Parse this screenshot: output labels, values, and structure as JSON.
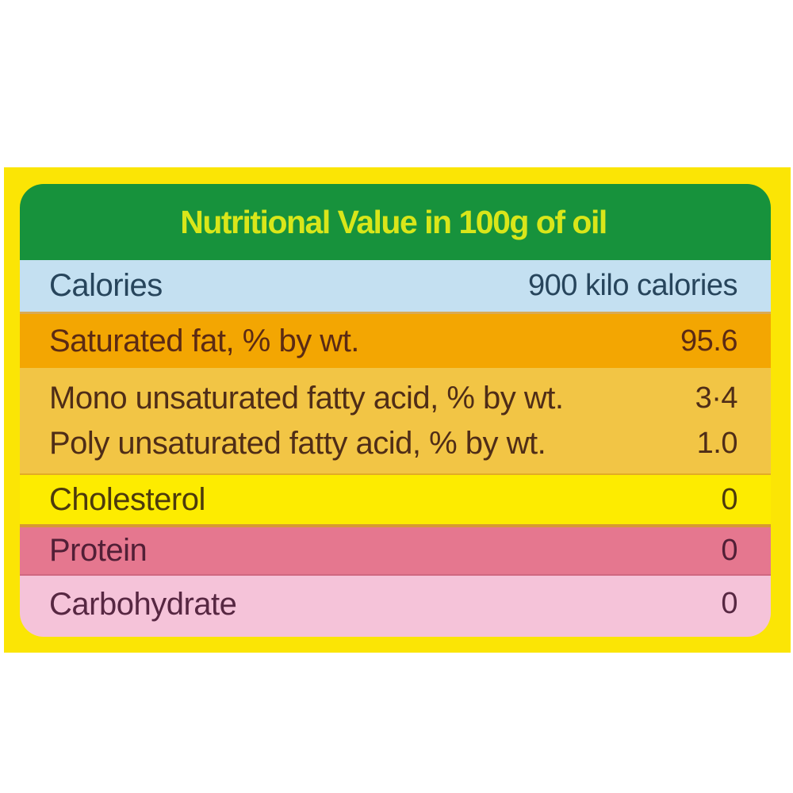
{
  "label": {
    "title": "Nutritional Value in 100g of oil",
    "colors": {
      "page_background": "#FFFFFF",
      "outer_background": "#FBE505",
      "header_background": "#17923C",
      "header_text": "#D9E61A"
    },
    "rows": [
      {
        "name": "calories",
        "bg": "#C4E0F1",
        "text_color": "#27455C",
        "lines": [
          {
            "label": "Calories",
            "value": "900 kilo calories"
          }
        ]
      },
      {
        "name": "saturated-fat",
        "bg": "#F3A602",
        "text_color": "#5B2A14",
        "lines": [
          {
            "label": "Saturated fat, % by wt.",
            "value": "95.6"
          }
        ]
      },
      {
        "name": "unsaturated-fats",
        "bg": "#F2C545",
        "text_color": "#4F2D17",
        "lines": [
          {
            "label": "Mono unsaturated fatty acid, % by wt.",
            "value": "3·4"
          },
          {
            "label": "Poly unsaturated fatty acid, % by wt.",
            "value": "1.0"
          }
        ]
      },
      {
        "name": "cholesterol",
        "bg": "#FDEC00",
        "text_color": "#4C3A0D",
        "lines": [
          {
            "label": "Cholesterol",
            "value": "0"
          }
        ]
      },
      {
        "name": "protein",
        "bg": "#E5778F",
        "text_color": "#511F36",
        "lines": [
          {
            "label": "Protein",
            "value": "0"
          }
        ]
      },
      {
        "name": "carbohydrate",
        "bg": "#F5C3D9",
        "text_color": "#572742",
        "lines": [
          {
            "label": "Carbohydrate",
            "value": "0"
          }
        ]
      }
    ]
  }
}
